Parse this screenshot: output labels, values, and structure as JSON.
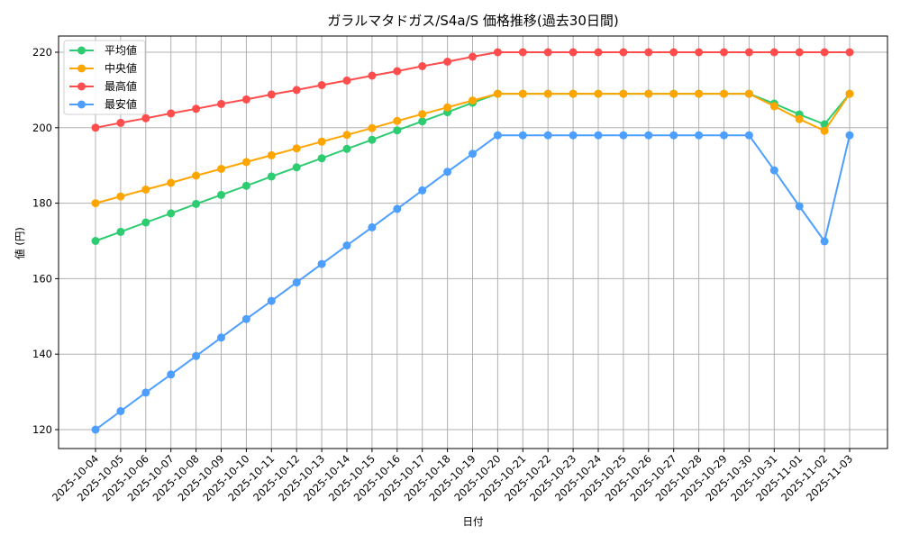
{
  "chart_data": {
    "type": "line",
    "title": "ガラルマタドガス/S4a/S 価格推移(過去30日間)",
    "xlabel": "日付",
    "ylabel": "値 (円)",
    "ylim": [
      115,
      225
    ],
    "yticks": [
      120,
      140,
      160,
      180,
      200,
      220
    ],
    "grid": true,
    "legend_position": "upper left",
    "categories": [
      "2025-10-04",
      "2025-10-05",
      "2025-10-06",
      "2025-10-07",
      "2025-10-08",
      "2025-10-09",
      "2025-10-10",
      "2025-10-11",
      "2025-10-12",
      "2025-10-13",
      "2025-10-14",
      "2025-10-15",
      "2025-10-16",
      "2025-10-17",
      "2025-10-18",
      "2025-10-19",
      "2025-10-20",
      "2025-10-21",
      "2025-10-22",
      "2025-10-23",
      "2025-10-24",
      "2025-10-25",
      "2025-10-26",
      "2025-10-27",
      "2025-10-28",
      "2025-10-29",
      "2025-10-30",
      "2025-10-31",
      "2025-11-01",
      "2025-11-02",
      "2025-11-03"
    ],
    "series": [
      {
        "name": "平均値",
        "color": "#2ecc71",
        "values": [
          170.0,
          172.4,
          174.9,
          177.3,
          179.8,
          182.2,
          184.6,
          187.1,
          189.5,
          191.9,
          194.4,
          196.8,
          199.3,
          201.7,
          204.1,
          206.6,
          209.0,
          209.0,
          209.0,
          209.0,
          209.0,
          209.0,
          209.0,
          209.0,
          209.0,
          209.0,
          209.0,
          206.4,
          203.5,
          200.9,
          209.0
        ]
      },
      {
        "name": "中央値",
        "color": "#ffa500",
        "values": [
          180.0,
          181.8,
          183.6,
          185.4,
          187.3,
          189.1,
          190.9,
          192.7,
          194.5,
          196.3,
          198.1,
          199.9,
          201.8,
          203.6,
          205.4,
          207.2,
          209.0,
          209.0,
          209.0,
          209.0,
          209.0,
          209.0,
          209.0,
          209.0,
          209.0,
          209.0,
          209.0,
          205.7,
          202.3,
          199.2,
          209.0
        ]
      },
      {
        "name": "最高値",
        "color": "#ff4d4d",
        "values": [
          200.0,
          201.3,
          202.5,
          203.8,
          205.0,
          206.3,
          207.5,
          208.8,
          210.0,
          211.3,
          212.5,
          213.8,
          215.0,
          216.3,
          217.5,
          218.8,
          220.0,
          220.0,
          220.0,
          220.0,
          220.0,
          220.0,
          220.0,
          220.0,
          220.0,
          220.0,
          220.0,
          220.0,
          220.0,
          220.0,
          220.0
        ]
      },
      {
        "name": "最安値",
        "color": "#4d9fff",
        "values": [
          120.0,
          124.9,
          129.8,
          134.6,
          139.5,
          144.4,
          149.3,
          154.1,
          159.0,
          163.9,
          168.8,
          173.6,
          178.5,
          183.4,
          188.3,
          193.1,
          198.0,
          198.0,
          198.0,
          198.0,
          198.0,
          198.0,
          198.0,
          198.0,
          198.0,
          198.0,
          198.0,
          188.7,
          179.2,
          169.9,
          198.0
        ]
      }
    ]
  }
}
